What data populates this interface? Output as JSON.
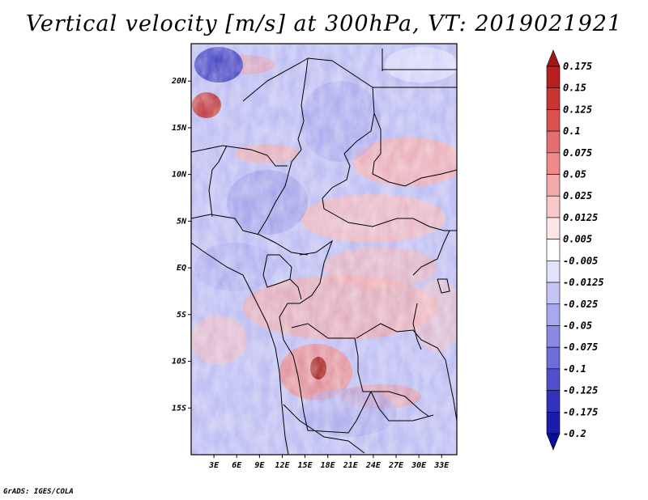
{
  "title": "Vertical velocity [m/s] at 300hPa, VT: 2019021921",
  "credit": "GrADS: IGES/COLA",
  "chart_data": {
    "type": "heatmap",
    "title": "Vertical velocity [m/s] at 300hPa, VT: 2019021921",
    "variable": "Vertical velocity",
    "units": "m/s",
    "level": "300hPa",
    "valid_time": "2019021921",
    "lon_range": [
      0,
      35
    ],
    "lat_range": [
      -20,
      24
    ],
    "x_ticks": [
      {
        "value": 3,
        "label": "3E"
      },
      {
        "value": 6,
        "label": "6E"
      },
      {
        "value": 9,
        "label": "9E"
      },
      {
        "value": 12,
        "label": "12E"
      },
      {
        "value": 15,
        "label": "15E"
      },
      {
        "value": 18,
        "label": "18E"
      },
      {
        "value": 21,
        "label": "21E"
      },
      {
        "value": 24,
        "label": "24E"
      },
      {
        "value": 27,
        "label": "27E"
      },
      {
        "value": 30,
        "label": "30E"
      },
      {
        "value": 33,
        "label": "33E"
      }
    ],
    "y_ticks": [
      {
        "value": 20,
        "label": "20N"
      },
      {
        "value": 15,
        "label": "15N"
      },
      {
        "value": 10,
        "label": "10N"
      },
      {
        "value": 5,
        "label": "5N"
      },
      {
        "value": 0,
        "label": "EQ"
      },
      {
        "value": -5,
        "label": "5S"
      },
      {
        "value": -10,
        "label": "10S"
      },
      {
        "value": -15,
        "label": "15S"
      }
    ],
    "colorbar": {
      "levels": [
        "0.175",
        "0.15",
        "0.125",
        "0.1",
        "0.075",
        "0.05",
        "0.025",
        "0.0125",
        "0.005",
        "-0.005",
        "-0.0125",
        "-0.025",
        "-0.05",
        "-0.075",
        "-0.1",
        "-0.125",
        "-0.175",
        "-0.2"
      ],
      "colors": [
        "#a01818",
        "#b82020",
        "#cc3434",
        "#dc5050",
        "#e66e6e",
        "#ee8a8a",
        "#f4aaaa",
        "#fac8c8",
        "#fde6e6",
        "#ffffff",
        "#e2e2fc",
        "#c6c6f6",
        "#a8a8ee",
        "#8a8ae4",
        "#6c6cda",
        "#4e4ece",
        "#3232be",
        "#1c1cac",
        "#0c0c98"
      ]
    }
  }
}
